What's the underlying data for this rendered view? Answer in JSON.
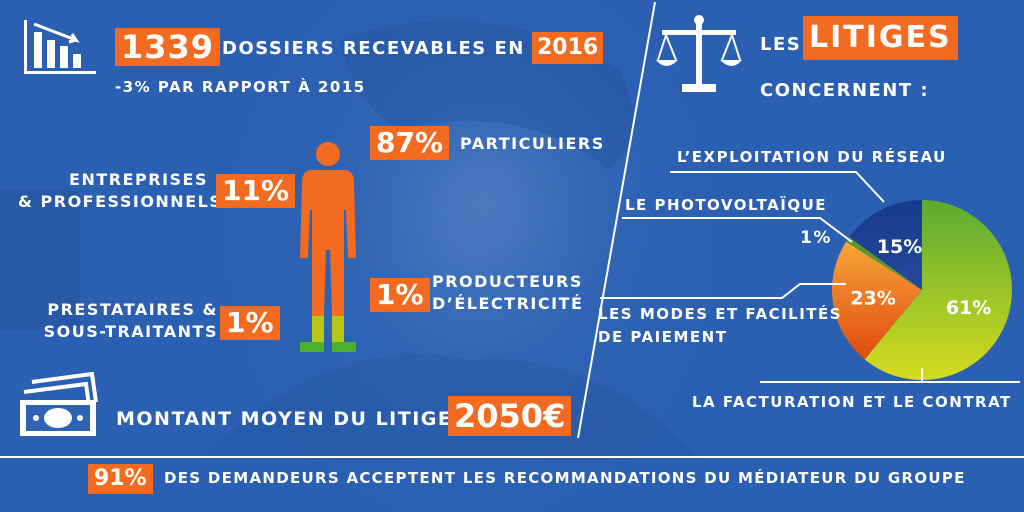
{
  "dossiers": {
    "count": "1339",
    "label": "DOSSIERS RECEVABLES EN",
    "year": "2016",
    "change": "-3% PAR RAPPORT À 2015"
  },
  "segments": {
    "particuliers": {
      "pct": "87%",
      "label": "PARTICULIERS"
    },
    "entreprises": {
      "pct": "11%",
      "label_line1": "ENTREPRISES",
      "label_line2": "& PROFESSIONNELS"
    },
    "producteurs": {
      "pct": "1%",
      "label_line1": "PRODUCTEURS",
      "label_line2": "D’ÉLECTRICITÉ"
    },
    "prestataires": {
      "pct": "1%",
      "label_line1": "PRESTATAIRES  &",
      "label_line2": "SOUS-TRAITANTS"
    }
  },
  "montant": {
    "label": "MONTANT MOYEN DU LITIGE",
    "value": "2050€"
  },
  "litiges": {
    "title_prefix": "LES",
    "title_highlight": "LITIGES",
    "title_suffix": "CONCERNENT :"
  },
  "footer": {
    "pct": "91%",
    "text": "DES DEMANDEURS ACCEPTENT LES RECOMMANDATIONS DU MÉDIATEUR DU GROUPE"
  },
  "chart_data": {
    "type": "pie",
    "slices": [
      {
        "label": "LA FACTURATION ET LE CONTRAT",
        "value": 61,
        "display": "61%",
        "color": "#8cc63f"
      },
      {
        "label": "LES MODES ET FACILITÉS DE PAIEMENT",
        "value": 23,
        "display": "23%",
        "color": "#f7941d"
      },
      {
        "label": "LE PHOTOVOLTAÏQUE",
        "value": 1,
        "display": "1%",
        "color": "#5a9a2a"
      },
      {
        "label": "L’EXPLOITATION DU RÉSEAU",
        "value": 15,
        "display": "15%",
        "color": "#1b3f8f"
      }
    ]
  },
  "colors": {
    "accent": "#f36a21",
    "background": "#2f63b3",
    "person_figure": "#f36a21"
  }
}
